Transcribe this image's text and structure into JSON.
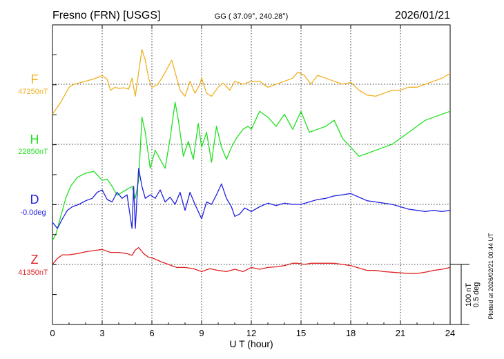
{
  "header": {
    "station": "Fresno (FRN)  [USGS]",
    "coords": "GG ( 37.09°, 240.28°)",
    "date": "2026/01/21"
  },
  "footer": {
    "plotted": "Plotted at 2026/02/21 00:44 UT"
  },
  "scale_bar": {
    "nt_label": "100 nT",
    "deg_label": "0.5 deg"
  },
  "chart_data": {
    "type": "line",
    "xlabel": "U T (hour)",
    "xlim": [
      0,
      24
    ],
    "xticks": [
      0,
      3,
      6,
      9,
      12,
      15,
      18,
      21,
      24
    ],
    "xtick_labels": [
      "0",
      "3",
      "6",
      "9",
      "12",
      "15",
      "18",
      "21",
      "24"
    ],
    "grid": true,
    "series": [
      {
        "name": "F",
        "baseline_label": "47250nT",
        "color": "#f0b020",
        "x": [
          0,
          0.2,
          0.5,
          0.8,
          1.0,
          1.3,
          1.6,
          2.0,
          2.4,
          2.8,
          3.0,
          3.3,
          3.5,
          3.8,
          4.0,
          4.3,
          4.6,
          4.8,
          5.0,
          5.2,
          5.4,
          5.6,
          5.8,
          6.0,
          6.3,
          6.6,
          6.9,
          7.2,
          7.5,
          7.7,
          8.0,
          8.3,
          8.6,
          8.9,
          9.0,
          9.3,
          9.6,
          10.0,
          10.3,
          10.7,
          11.0,
          11.5,
          12.0,
          12.5,
          13.0,
          13.5,
          14.0,
          14.5,
          14.8,
          15.2,
          15.6,
          16.0,
          16.5,
          17.0,
          17.5,
          18.0,
          18.5,
          19.0,
          19.5,
          20.0,
          20.5,
          21.0,
          21.5,
          22.0,
          22.5,
          23.0,
          23.5,
          24.0
        ],
        "y": [
          -50,
          -42,
          -30,
          -15,
          -5,
          0,
          2,
          5,
          8,
          12,
          15,
          8,
          -10,
          -5,
          -7,
          -6,
          -8,
          10,
          -20,
          20,
          58,
          40,
          10,
          -5,
          -2,
          10,
          25,
          40,
          10,
          -10,
          -20,
          5,
          -15,
          0,
          10,
          -15,
          -20,
          -5,
          2,
          -10,
          5,
          0,
          5,
          5,
          -5,
          0,
          5,
          10,
          20,
          15,
          0,
          15,
          10,
          5,
          0,
          3,
          -10,
          -18,
          -20,
          -15,
          -10,
          -10,
          -5,
          -5,
          0,
          5,
          10,
          18
        ]
      },
      {
        "name": "H",
        "baseline_label": "22850nT",
        "color": "#20e020",
        "x": [
          0,
          0.2,
          0.5,
          0.8,
          1.1,
          1.5,
          2.0,
          2.5,
          3.0,
          3.3,
          3.6,
          3.9,
          4.2,
          4.5,
          4.8,
          5.0,
          5.2,
          5.4,
          5.6,
          5.9,
          6.2,
          6.5,
          6.8,
          7.1,
          7.4,
          7.6,
          7.9,
          8.2,
          8.5,
          8.8,
          9.0,
          9.3,
          9.6,
          9.9,
          10.2,
          10.5,
          10.8,
          11.1,
          11.5,
          11.8,
          12.0,
          12.5,
          13.0,
          13.5,
          14.0,
          14.5,
          15.0,
          15.5,
          16.0,
          16.5,
          17.0,
          17.5,
          18.0,
          18.5,
          19.0,
          19.5,
          20.0,
          20.5,
          21.0,
          21.5,
          22.0,
          22.5,
          23.0,
          23.5,
          24.0
        ],
        "y": [
          -160,
          -150,
          -120,
          -90,
          -70,
          -55,
          -48,
          -45,
          -60,
          -58,
          -70,
          -85,
          -80,
          -75,
          -70,
          -90,
          -60,
          45,
          20,
          -40,
          -10,
          -25,
          -40,
          10,
          70,
          40,
          -20,
          5,
          -25,
          35,
          -5,
          20,
          -30,
          30,
          -5,
          -25,
          -5,
          10,
          25,
          30,
          25,
          55,
          45,
          30,
          50,
          25,
          55,
          20,
          25,
          30,
          40,
          10,
          -5,
          -20,
          -15,
          -10,
          -5,
          0,
          10,
          20,
          30,
          40,
          45,
          50,
          55
        ]
      },
      {
        "name": "D",
        "baseline_label": "-0.0deg",
        "color": "#2020e0",
        "x": [
          0,
          0.3,
          0.6,
          0.9,
          1.2,
          1.6,
          2.0,
          2.4,
          2.7,
          3.0,
          3.3,
          3.6,
          3.9,
          4.2,
          4.5,
          4.8,
          4.9,
          5.0,
          5.2,
          5.4,
          5.6,
          5.9,
          6.2,
          6.5,
          6.8,
          7.1,
          7.4,
          7.7,
          8.0,
          8.3,
          8.6,
          9.0,
          9.3,
          9.6,
          9.9,
          10.2,
          10.5,
          10.8,
          11.0,
          11.3,
          11.6,
          12.0,
          12.5,
          13.0,
          13.5,
          14.0,
          14.5,
          15.0,
          15.5,
          16.0,
          16.5,
          17.0,
          17.5,
          18.0,
          18.5,
          19.0,
          19.5,
          20.0,
          20.5,
          21.0,
          21.5,
          22.0,
          22.5,
          23.0,
          23.5,
          24.0
        ],
        "y": [
          -0.15,
          -0.2,
          -0.12,
          -0.05,
          -0.02,
          0,
          0.03,
          0.05,
          0.1,
          0.12,
          0.04,
          0.02,
          0.1,
          0.05,
          0.08,
          -0.2,
          0.15,
          -0.2,
          0.3,
          0.15,
          0.05,
          0.08,
          0.05,
          0.12,
          0.02,
          0.06,
          0,
          0.1,
          -0.05,
          0.1,
          0,
          -0.12,
          0.02,
          0,
          0.08,
          0.17,
          0.05,
          -0.02,
          -0.1,
          -0.08,
          -0.03,
          -0.06,
          -0.02,
          0.01,
          -0.01,
          0.01,
          0,
          0,
          0.02,
          0.04,
          0.05,
          0.07,
          0.08,
          0.09,
          0.06,
          0.03,
          0.02,
          0.01,
          0,
          -0.02,
          -0.04,
          -0.05,
          -0.06,
          -0.05,
          -0.06,
          -0.05
        ]
      },
      {
        "name": "Z",
        "baseline_label": "41350nT",
        "color": "#e02020",
        "x": [
          0,
          0.3,
          0.6,
          1.0,
          1.5,
          2.0,
          2.5,
          3.0,
          3.5,
          4.0,
          4.5,
          4.8,
          5.0,
          5.2,
          5.5,
          5.8,
          6.1,
          6.5,
          7.0,
          7.5,
          8.0,
          8.5,
          9.0,
          9.5,
          10.0,
          10.5,
          11.0,
          11.5,
          12.0,
          12.5,
          13.0,
          13.5,
          14.0,
          14.5,
          14.8,
          15.2,
          15.6,
          16.0,
          16.5,
          17.0,
          17.5,
          18.0,
          18.5,
          19.0,
          19.5,
          20.0,
          20.5,
          21.0,
          21.5,
          22.0,
          22.5,
          23.0,
          23.5,
          24.0
        ],
        "y": [
          0,
          10,
          16,
          16,
          18,
          21,
          23,
          25,
          20,
          20,
          18,
          15,
          24,
          28,
          18,
          12,
          10,
          5,
          0,
          -5,
          -5,
          -7,
          -12,
          -7,
          -10,
          -12,
          -8,
          -12,
          -5,
          -8,
          -5,
          -4,
          -2,
          2,
          2,
          0,
          2,
          2,
          2,
          2,
          0,
          -2,
          -6,
          -10,
          -10,
          -12,
          -13,
          -14,
          -15,
          -15,
          -13,
          -10,
          -8,
          -5
        ]
      }
    ]
  }
}
